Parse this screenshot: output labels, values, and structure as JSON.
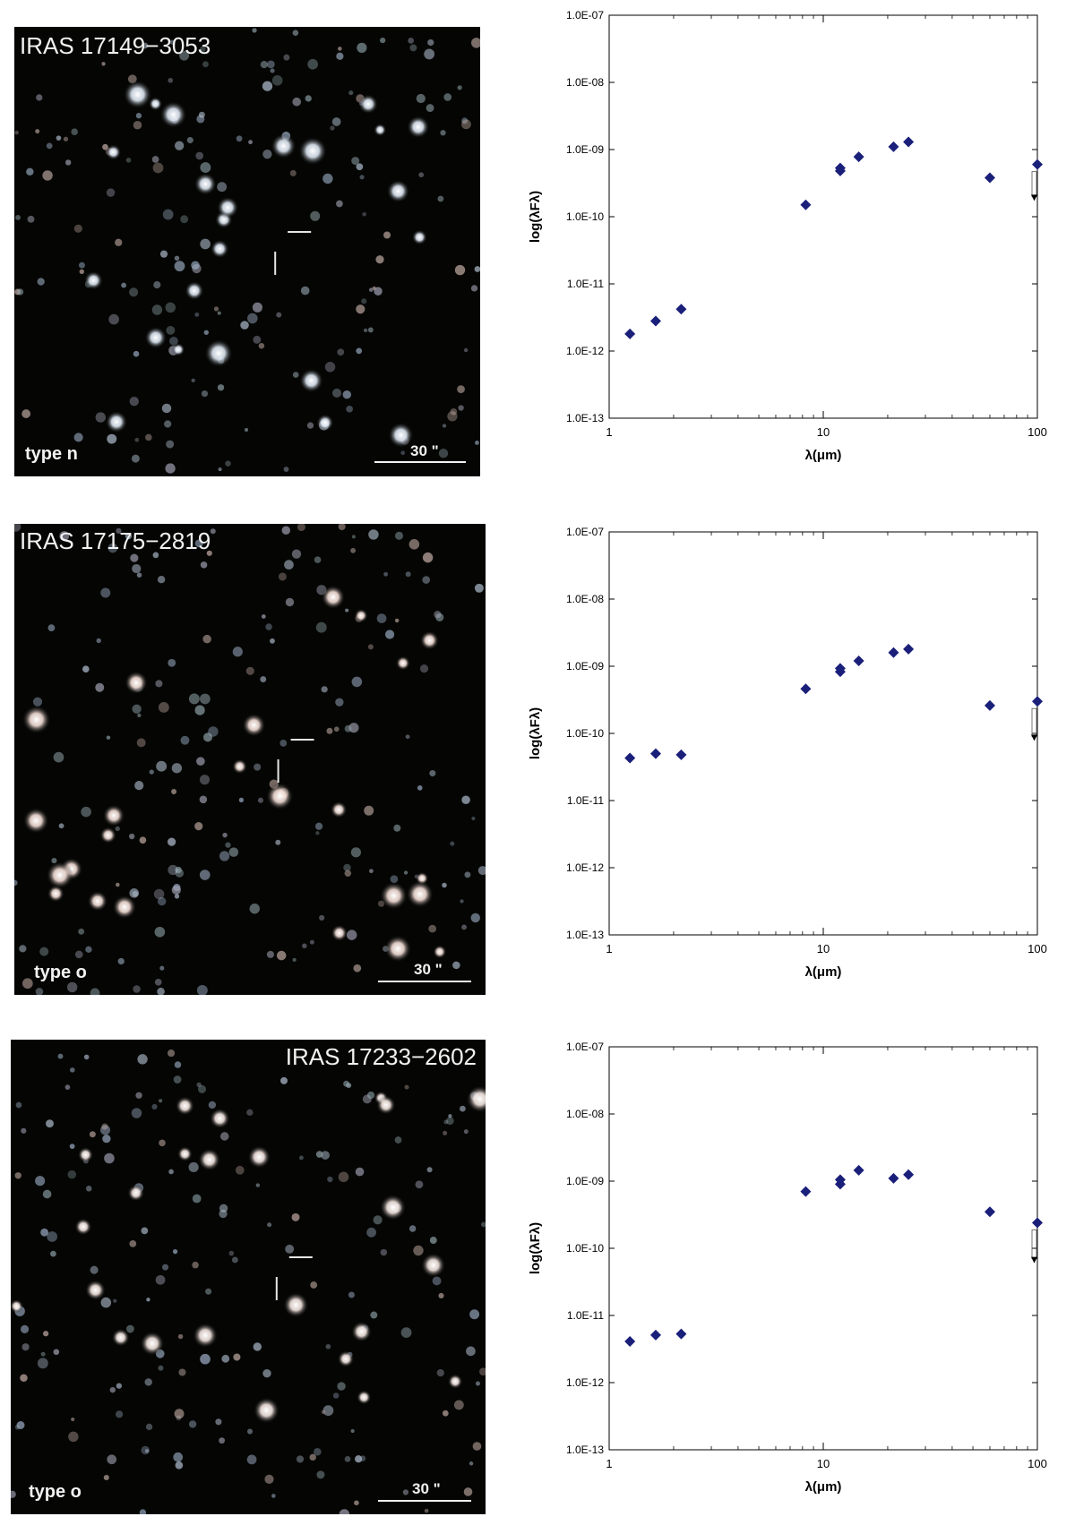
{
  "panels": [
    {
      "name": "IRAS 17149−3053",
      "type_label": "type n",
      "scale_label": "30 \"",
      "image": {
        "tint": "#e8f2ff"
      },
      "chart_data": {
        "type": "scatter",
        "title": "",
        "xlabel": "λ(μm)",
        "ylabel": "log(λFλ)",
        "xscale": "log",
        "yscale": "log",
        "xlim": [
          1,
          100
        ],
        "ylim": [
          1e-13,
          1e-07
        ],
        "x_ticks": [
          "1",
          "10",
          "100"
        ],
        "y_ticks": [
          "1.0E-13",
          "1.0E-12",
          "1.0E-11",
          "1.0E-10",
          "1.0E-09",
          "1.0E-08",
          "1.0E-07"
        ],
        "marker_color": "#1a1f7a",
        "points": [
          {
            "x": 1.25,
            "y": 1.8e-12
          },
          {
            "x": 1.65,
            "y": 2.8e-12
          },
          {
            "x": 2.17,
            "y": 4.2e-12
          },
          {
            "x": 8.28,
            "y": 1.5e-10
          },
          {
            "x": 12,
            "y": 4.8e-10
          },
          {
            "x": 12,
            "y": 5.3e-10
          },
          {
            "x": 14.65,
            "y": 7.8e-10
          },
          {
            "x": 21.3,
            "y": 1.1e-09
          },
          {
            "x": 25,
            "y": 1.3e-09
          },
          {
            "x": 60,
            "y": 3.8e-10
          },
          {
            "x": 100,
            "y": 6e-10
          }
        ],
        "upper_limit": {
          "x": 100,
          "y": 6e-10,
          "to": 2e-10
        }
      }
    },
    {
      "name": "IRAS 17175−2819",
      "type_label": "type o",
      "scale_label": "30 \"",
      "image": {
        "tint": "#ffe8e0"
      },
      "chart_data": {
        "type": "scatter",
        "title": "",
        "xlabel": "λ(μm)",
        "ylabel": "log(λFλ)",
        "xscale": "log",
        "yscale": "log",
        "xlim": [
          1,
          100
        ],
        "ylim": [
          1e-13,
          1e-07
        ],
        "x_ticks": [
          "1",
          "10",
          "100"
        ],
        "y_ticks": [
          "1.0E-13",
          "1.0E-12",
          "1.0E-11",
          "1.0E-10",
          "1.0E-09",
          "1.0E-08",
          "1.0E-07"
        ],
        "marker_color": "#1a1f7a",
        "points": [
          {
            "x": 1.25,
            "y": 4.3e-11
          },
          {
            "x": 1.65,
            "y": 5e-11
          },
          {
            "x": 2.17,
            "y": 4.8e-11
          },
          {
            "x": 8.28,
            "y": 4.6e-10
          },
          {
            "x": 12,
            "y": 8.3e-10
          },
          {
            "x": 12,
            "y": 9.3e-10
          },
          {
            "x": 14.65,
            "y": 1.2e-09
          },
          {
            "x": 21.3,
            "y": 1.6e-09
          },
          {
            "x": 25,
            "y": 1.8e-09
          },
          {
            "x": 60,
            "y": 2.6e-10
          },
          {
            "x": 100,
            "y": 3e-10
          }
        ],
        "upper_limit": {
          "x": 100,
          "y": 3e-10,
          "to": 9e-11
        }
      }
    },
    {
      "name": "IRAS 17233−2602",
      "type_label": "type o",
      "scale_label": "30 \"",
      "image": {
        "tint": "#fff0ea"
      },
      "chart_data": {
        "type": "scatter",
        "title": "",
        "xlabel": "λ(μm)",
        "ylabel": "log(λFλ)",
        "xscale": "log",
        "yscale": "log",
        "xlim": [
          1,
          100
        ],
        "ylim": [
          1e-13,
          1e-07
        ],
        "x_ticks": [
          "1",
          "10",
          "100"
        ],
        "y_ticks": [
          "1.0E-13",
          "1.0E-12",
          "1.0E-11",
          "1.0E-10",
          "1.0E-09",
          "1.0E-08",
          "1.0E-07"
        ],
        "marker_color": "#1a1f7a",
        "points": [
          {
            "x": 1.25,
            "y": 4.1e-12
          },
          {
            "x": 1.65,
            "y": 5.1e-12
          },
          {
            "x": 2.17,
            "y": 5.3e-12
          },
          {
            "x": 8.28,
            "y": 7e-10
          },
          {
            "x": 12,
            "y": 9e-10
          },
          {
            "x": 12,
            "y": 1.05e-09
          },
          {
            "x": 14.65,
            "y": 1.45e-09
          },
          {
            "x": 21.3,
            "y": 1.1e-09
          },
          {
            "x": 25,
            "y": 1.25e-09
          },
          {
            "x": 60,
            "y": 3.5e-10
          },
          {
            "x": 100,
            "y": 2.4e-10
          }
        ],
        "upper_limit": {
          "x": 100,
          "y": 2.4e-10,
          "to": 7e-11
        }
      }
    }
  ]
}
